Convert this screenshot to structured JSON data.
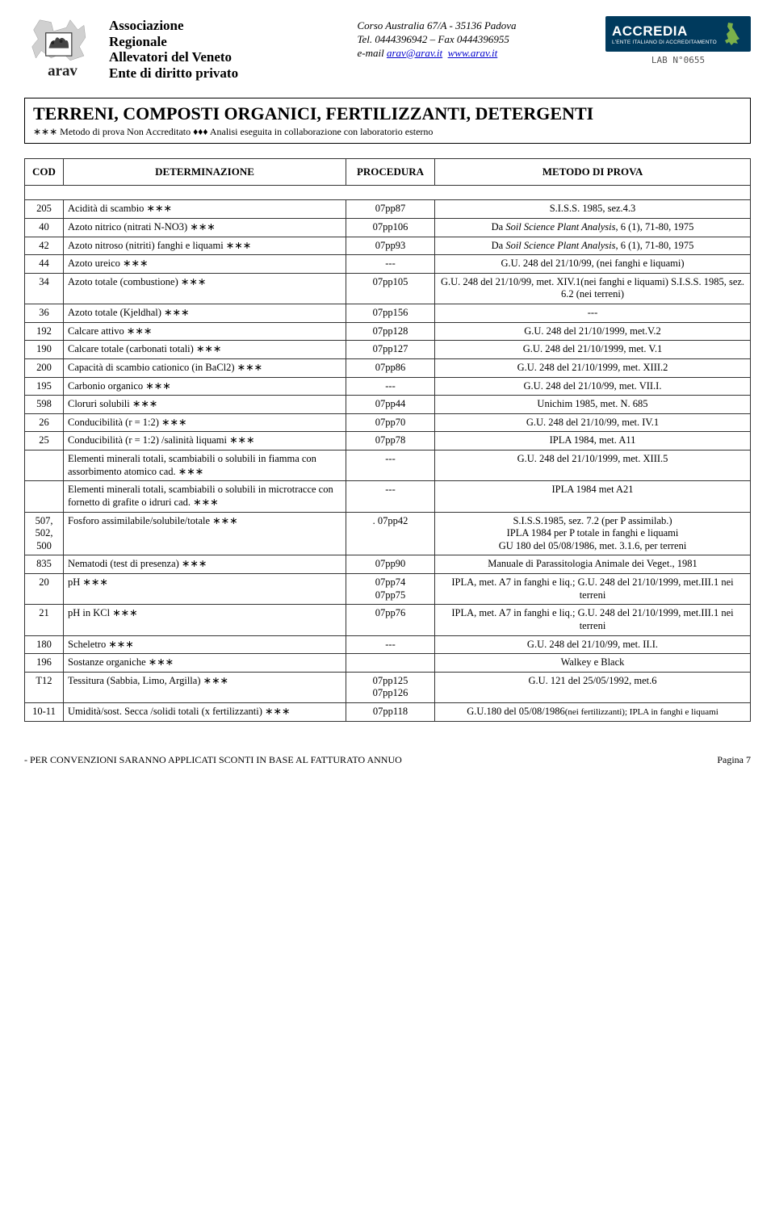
{
  "header": {
    "org_lines": [
      "Associazione",
      "Regionale",
      "Allevatori del Veneto",
      "Ente di diritto privato"
    ],
    "logo_text": "arav",
    "contact": {
      "line1": "Corso Australia 67/A    -    35136 Padova",
      "line2": "Tel. 0444396942 – Fax 0444396955",
      "line3_prefix": "e-mail ",
      "email": "arav@arav.it",
      "site": "www.arav.it"
    },
    "accredia": {
      "brand": "ACCREDIA",
      "tagline": "L'ENTE ITALIANO DI ACCREDITAMENTO",
      "lab": "LAB N°0655"
    }
  },
  "title": "TERRENI, COMPOSTI ORGANICI, FERTILIZZANTI, DETERGENTI",
  "subtitle": "∗∗∗ Metodo di prova Non Accreditato   ♦♦♦ Analisi eseguita in collaborazione con laboratorio esterno",
  "columns": [
    "COD",
    "DETERMINAZIONE",
    "PROCEDURA",
    "METODO DI PROVA"
  ],
  "rows": [
    {
      "cod": "205",
      "det": "Acidità di scambio ∗∗∗",
      "proc": "07pp87",
      "met": "S.I.S.S. 1985, sez.4.3"
    },
    {
      "cod": "40",
      "det": "Azoto nitrico (nitrati N-NO3) ∗∗∗",
      "proc": "07pp106",
      "met": "Da Soil Science Plant Analysis, 6 (1), 71-80, 1975",
      "met_html": "Da <i>Soil Science Plant Analysis</i>, 6 (1), 71-80, 1975"
    },
    {
      "cod": "42",
      "det": "Azoto nitroso (nitriti) fanghi e liquami ∗∗∗",
      "proc": "07pp93",
      "met": "Da Soil Science Plant Analysis, 6 (1), 71-80, 1975",
      "met_html": "Da <i>Soil Science Plant Analysis</i>, 6 (1), 71-80, 1975"
    },
    {
      "cod": "44",
      "det": "Azoto ureico ∗∗∗",
      "proc": "---",
      "met": "G.U. 248 del 21/10/99, (nei fanghi e liquami)"
    },
    {
      "cod": "34",
      "det": "Azoto totale (combustione) ∗∗∗",
      "proc": "07pp105",
      "met": "G.U. 248 del 21/10/99, met. XIV.1(nei fanghi e liquami) S.I.S.S. 1985, sez. 6.2 (nei terreni)"
    },
    {
      "cod": "36",
      "det": "Azoto totale (Kjeldhal) ∗∗∗",
      "proc": "07pp156",
      "met": "---"
    },
    {
      "cod": "192",
      "det": "Calcare attivo ∗∗∗",
      "proc": "07pp128",
      "met": "G.U. 248 del 21/10/1999, met.V.2"
    },
    {
      "cod": "190",
      "det": "Calcare totale (carbonati totali) ∗∗∗",
      "proc": "07pp127",
      "met": "G.U. 248 del 21/10/1999, met. V.1"
    },
    {
      "cod": "200",
      "det": "Capacità di scambio cationico (in BaCl2) ∗∗∗",
      "proc": "07pp86",
      "met": "G.U. 248 del 21/10/1999, met. XIII.2"
    },
    {
      "cod": "195",
      "det": "Carbonio organico ∗∗∗",
      "proc": "---",
      "met": "G.U. 248 del 21/10/99, met. VII.I."
    },
    {
      "cod": "598",
      "det": "Cloruri solubili ∗∗∗",
      "proc": "07pp44",
      "met": "Unichim 1985, met. N. 685"
    },
    {
      "cod": "26",
      "det": "Conducibilità (r = 1:2) ∗∗∗",
      "proc": "07pp70",
      "met": "G.U. 248 del 21/10/99, met. IV.1"
    },
    {
      "cod": "25",
      "det": "Conducibilità (r = 1:2) /salinità liquami ∗∗∗",
      "proc": "07pp78",
      "met": "IPLA 1984, met. A11"
    },
    {
      "cod": "",
      "det": "Elementi minerali totali, scambiabili o solubili in fiamma con assorbimento atomico    cad. ∗∗∗",
      "proc": "---",
      "met": "G.U. 248 del 21/10/1999, met. XIII.5"
    },
    {
      "cod": "",
      "det": "Elementi minerali totali, scambiabili o solubili in microtracce con fornetto di grafite o idruri cad. ∗∗∗",
      "proc": "---",
      "met": "IPLA 1984 met A21"
    },
    {
      "cod": "507, 502, 500",
      "det": "Fosforo assimilabile/solubile/totale ∗∗∗",
      "proc": ". 07pp42",
      "met": "S.I.S.S.1985, sez. 7.2 (per P assimilab.)\nIPLA 1984 per P totale in fanghi e liquami\nGU 180 del 05/08/1986, met. 3.1.6, per terreni"
    },
    {
      "cod": "835",
      "det": "Nematodi (test di presenza) ∗∗∗",
      "proc": "07pp90",
      "met": "Manuale di Parassitologia Animale dei Veget., 1981"
    },
    {
      "cod": "20",
      "det": "pH ∗∗∗",
      "proc": "07pp74\n07pp75",
      "met": "IPLA, met. A7 in fanghi e liq.; G.U. 248 del 21/10/1999, met.III.1 nei terreni"
    },
    {
      "cod": "21",
      "det": "pH in KCl ∗∗∗",
      "proc": "07pp76",
      "met": "IPLA, met. A7 in fanghi e liq.; G.U. 248 del 21/10/1999, met.III.1 nei terreni"
    },
    {
      "cod": "180",
      "det": "Scheletro ∗∗∗",
      "proc": "---",
      "met": "G.U. 248 del 21/10/99, met. II.I."
    },
    {
      "cod": "196",
      "det": "Sostanze organiche ∗∗∗",
      "proc": "",
      "met": "Walkey e Black"
    },
    {
      "cod": "T12",
      "det": "Tessitura (Sabbia, Limo, Argilla) ∗∗∗",
      "proc": "07pp125\n07pp126",
      "met": "G.U. 121 del 25/05/1992, met.6"
    },
    {
      "cod": "10-11",
      "det": "Umidità/sost. Secca /solidi totali (x fertilizzanti) ∗∗∗",
      "proc": "07pp118",
      "met": "G.U.180 del 05/08/1986(nei fertilizzanti); IPLA in fanghi e liquami",
      "met_html": "G.U.180 del 05/08/1986<span style='font-size:11px'>(nei fertilizzanti); IPLA in fanghi e liquami</span>"
    }
  ],
  "footer": {
    "left": "-   PER CONVENZIONI SARANNO APPLICATI SCONTI IN BASE AL FATTURATO ANNUO",
    "right": "Pagina 7"
  }
}
